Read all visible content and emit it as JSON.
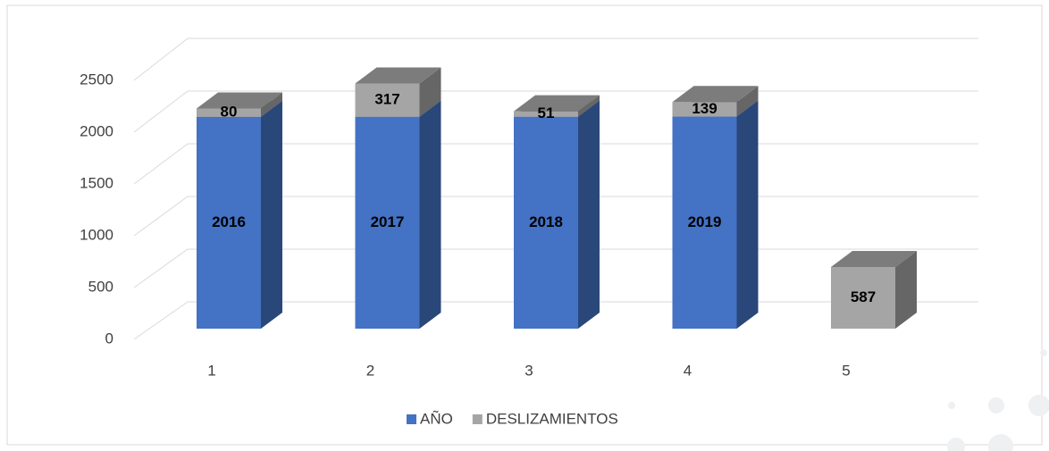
{
  "chart_data": {
    "type": "bar3d_stacked",
    "categories": [
      "1",
      "2",
      "3",
      "4",
      "5"
    ],
    "series": [
      {
        "name": "AÑO",
        "color": "#4472c4",
        "values": [
          2016,
          2017,
          2018,
          2019,
          null
        ]
      },
      {
        "name": "DESLIZAMIENTOS",
        "color": "#a5a5a5",
        "values": [
          80,
          317,
          51,
          139,
          587
        ]
      }
    ],
    "ylim": [
      0,
      2500
    ],
    "yticks": [
      0,
      500,
      1000,
      1500,
      2000,
      2500
    ],
    "grid": true,
    "legend": "bottom"
  }
}
